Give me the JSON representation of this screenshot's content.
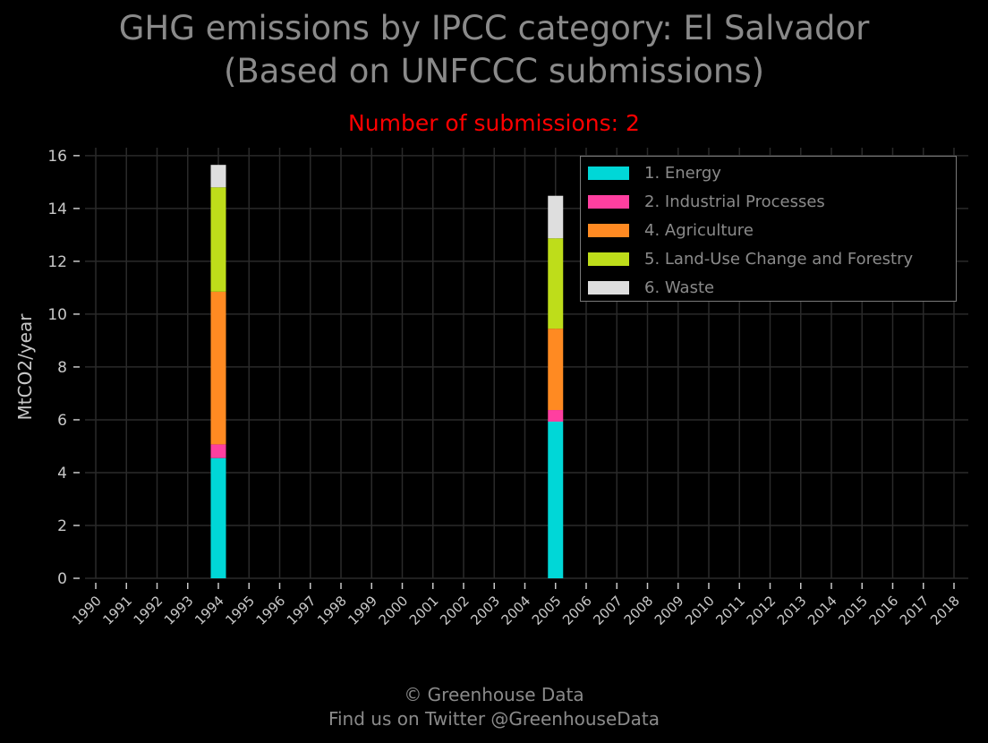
{
  "page": {
    "title_line1": "GHG emissions by IPCC category: El Salvador",
    "title_line2": "(Based on UNFCCC submissions)",
    "subtitle": "Number of submissions: 2",
    "footer_line1": "© Greenhouse Data",
    "footer_line2": "Find us on Twitter @GreenhouseData"
  },
  "colors": {
    "background": "#000000",
    "grid": "#2a2a2a",
    "axis_text": "#c8c8c8"
  },
  "chart_data": {
    "type": "bar",
    "stacked": true,
    "title": "GHG emissions by IPCC category: El Salvador (Based on UNFCCC submissions)",
    "subtitle": "Number of submissions: 2",
    "xlabel": "",
    "ylabel": "MtCO2/year",
    "ylim": [
      0,
      16.3
    ],
    "yticks": [
      0,
      2,
      4,
      6,
      8,
      10,
      12,
      14,
      16
    ],
    "grid": true,
    "legend_position": "top-right",
    "categories": [
      "1990",
      "1991",
      "1992",
      "1993",
      "1994",
      "1995",
      "1996",
      "1997",
      "1998",
      "1999",
      "2000",
      "2001",
      "2002",
      "2003",
      "2004",
      "2005",
      "2006",
      "2007",
      "2008",
      "2009",
      "2010",
      "2011",
      "2012",
      "2013",
      "2014",
      "2015",
      "2016",
      "2017",
      "2018"
    ],
    "series": [
      {
        "name": "1. Energy",
        "color": "#00d7d7",
        "values": [
          null,
          null,
          null,
          null,
          4.55,
          null,
          null,
          null,
          null,
          null,
          null,
          null,
          null,
          null,
          null,
          5.93,
          null,
          null,
          null,
          null,
          null,
          null,
          null,
          null,
          null,
          null,
          null,
          null,
          null
        ]
      },
      {
        "name": "2. Industrial Processes",
        "color": "#ff3fa0",
        "values": [
          null,
          null,
          null,
          null,
          0.52,
          null,
          null,
          null,
          null,
          null,
          null,
          null,
          null,
          null,
          null,
          0.44,
          null,
          null,
          null,
          null,
          null,
          null,
          null,
          null,
          null,
          null,
          null,
          null,
          null
        ]
      },
      {
        "name": "4. Agriculture",
        "color": "#ff8a22",
        "values": [
          null,
          null,
          null,
          null,
          5.78,
          null,
          null,
          null,
          null,
          null,
          null,
          null,
          null,
          null,
          null,
          3.08,
          null,
          null,
          null,
          null,
          null,
          null,
          null,
          null,
          null,
          null,
          null,
          null,
          null
        ]
      },
      {
        "name": "5. Land-Use Change and Forestry",
        "color": "#bedd1a",
        "values": [
          null,
          null,
          null,
          null,
          3.95,
          null,
          null,
          null,
          null,
          null,
          null,
          null,
          null,
          null,
          null,
          3.42,
          null,
          null,
          null,
          null,
          null,
          null,
          null,
          null,
          null,
          null,
          null,
          null,
          null
        ]
      },
      {
        "name": "6. Waste",
        "color": "#dedede",
        "values": [
          null,
          null,
          null,
          null,
          0.85,
          null,
          null,
          null,
          null,
          null,
          null,
          null,
          null,
          null,
          null,
          1.61,
          null,
          null,
          null,
          null,
          null,
          null,
          null,
          null,
          null,
          null,
          null,
          null,
          null
        ]
      }
    ]
  }
}
